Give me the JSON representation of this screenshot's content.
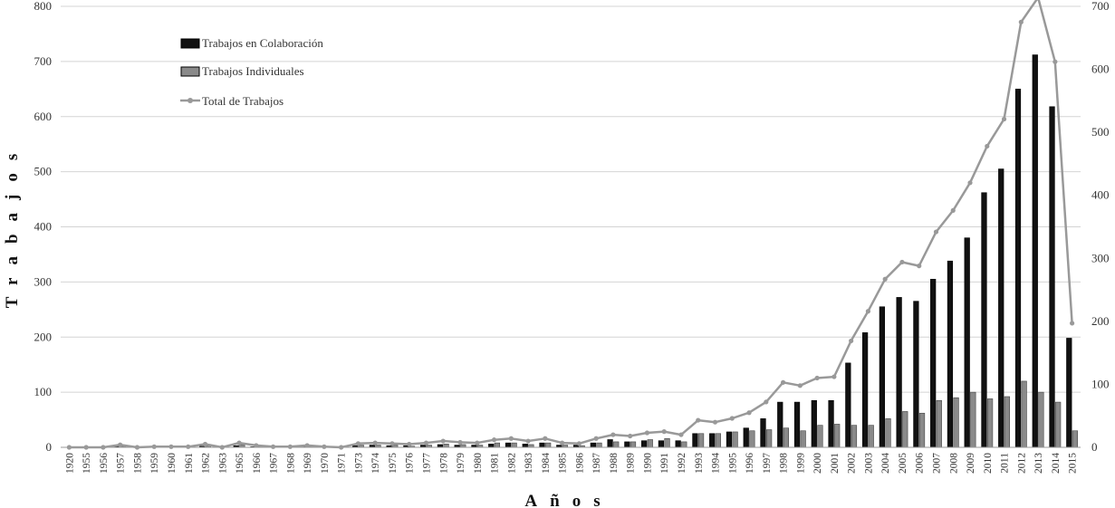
{
  "chart_data": {
    "type": "bar",
    "title": "",
    "xlabel": "Años",
    "ylabel": "Trabajos",
    "ylim": [
      0,
      800
    ],
    "y2lim": [
      0,
      700
    ],
    "yticks": [
      "0",
      "100",
      "200",
      "300",
      "400",
      "500",
      "600",
      "700",
      "800"
    ],
    "y2ticks": [
      "0",
      "100",
      "200",
      "300",
      "400",
      "500",
      "600",
      "700"
    ],
    "grid": true,
    "legend_position": "top-left",
    "categories": [
      "1920",
      "1955",
      "1956",
      "1957",
      "1958",
      "1959",
      "1960",
      "1961",
      "1962",
      "1963",
      "1965",
      "1966",
      "1967",
      "1968",
      "1969",
      "1970",
      "1971",
      "1973",
      "1974",
      "1975",
      "1976",
      "1977",
      "1978",
      "1979",
      "1980",
      "1981",
      "1982",
      "1983",
      "1984",
      "1985",
      "1986",
      "1987",
      "1988",
      "1989",
      "1990",
      "1991",
      "1992",
      "1993",
      "1994",
      "1995",
      "1996",
      "1997",
      "1998",
      "1999",
      "2000",
      "2001",
      "2002",
      "2003",
      "2004",
      "2005",
      "2006",
      "2007",
      "2008",
      "2009",
      "2010",
      "2011",
      "2012",
      "2013",
      "2014",
      "2015"
    ],
    "series": [
      {
        "name": "Trabajos en Colaboración",
        "chart": "bar",
        "axis": "left",
        "color": "#111111",
        "values": [
          0,
          0,
          0,
          2,
          0,
          0,
          0,
          0,
          2,
          0,
          3,
          1,
          0,
          0,
          1,
          0,
          0,
          3,
          4,
          3,
          3,
          4,
          5,
          4,
          4,
          6,
          8,
          6,
          8,
          4,
          4,
          8,
          14,
          10,
          12,
          12,
          12,
          25,
          25,
          28,
          35,
          52,
          82,
          82,
          85,
          85,
          153,
          208,
          255,
          272,
          265,
          305,
          338,
          380,
          462,
          505,
          650,
          712,
          618,
          198
        ]
      },
      {
        "name": "Trabajos Individuales",
        "chart": "bar",
        "axis": "left",
        "color": "#8a8a8a",
        "values": [
          0,
          0,
          0,
          2,
          0,
          0,
          1,
          1,
          3,
          0,
          5,
          2,
          1,
          1,
          2,
          1,
          0,
          4,
          4,
          4,
          2,
          4,
          6,
          5,
          4,
          8,
          8,
          5,
          8,
          4,
          3,
          8,
          10,
          10,
          14,
          16,
          10,
          25,
          25,
          28,
          30,
          32,
          35,
          30,
          40,
          42,
          40,
          40,
          52,
          65,
          62,
          85,
          90,
          100,
          88,
          92,
          120,
          100,
          82,
          30
        ]
      },
      {
        "name": "Total de Trabajos",
        "chart": "line",
        "axis": "right",
        "color": "#999999",
        "values": [
          0,
          0,
          0,
          4,
          0,
          1,
          1,
          1,
          5,
          0,
          7,
          3,
          1,
          1,
          3,
          1,
          0,
          6,
          7,
          6,
          5,
          7,
          10,
          8,
          7,
          12,
          14,
          10,
          14,
          7,
          6,
          14,
          20,
          18,
          23,
          25,
          20,
          43,
          40,
          46,
          55,
          72,
          103,
          98,
          110,
          112,
          169,
          216,
          267,
          294,
          288,
          342,
          376,
          420,
          478,
          521,
          675,
          714,
          612,
          197
        ]
      }
    ]
  }
}
